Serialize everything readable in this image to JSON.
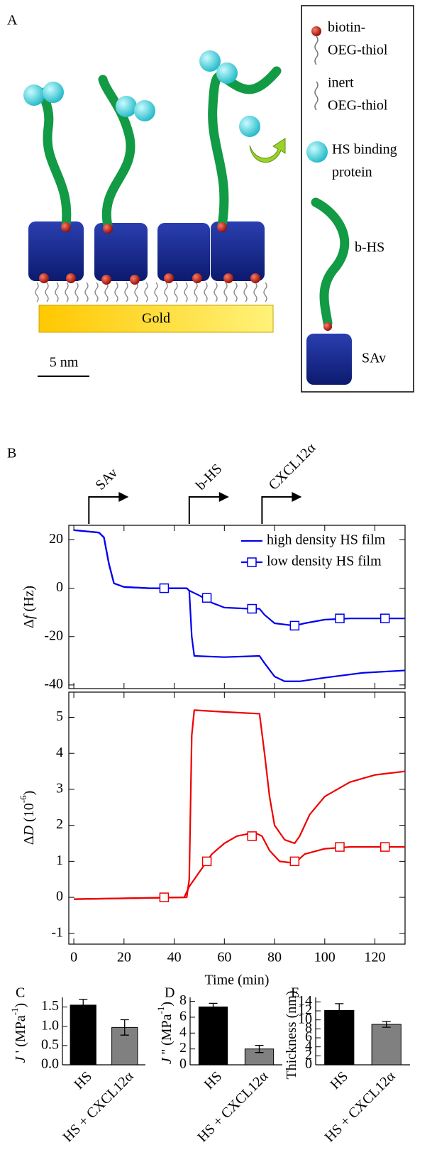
{
  "panel_labels": {
    "a": "A",
    "b": "B",
    "c": "C",
    "d": "D",
    "e": "E"
  },
  "diagram": {
    "substrate": "Gold",
    "scale_bar": "5 nm",
    "legend": [
      {
        "lines": [
          "biotin-",
          "OEG-thiol"
        ]
      },
      {
        "lines": [
          "inert",
          "OEG-thiol"
        ]
      },
      {
        "lines": [
          "HS binding",
          "protein"
        ]
      },
      {
        "lines": [
          "b-HS"
        ]
      },
      {
        "lines": [
          "SAv"
        ]
      }
    ]
  },
  "chart_data": [
    {
      "type": "line",
      "ylabel": [
        "Δ",
        "f",
        " (Hz)"
      ],
      "xlim": [
        -2,
        132
      ],
      "ylim": [
        -41.5,
        26
      ],
      "yticks": [
        -40,
        -20,
        0,
        20
      ],
      "legend": "upper right",
      "annotations": [
        {
          "text": "SAv",
          "x": 6
        },
        {
          "text": "b-HS",
          "x": 46
        },
        {
          "text": "CXCL12α",
          "x": 75
        }
      ],
      "series": [
        {
          "name": "high density HS film",
          "color": "#0000ee",
          "x": [
            0,
            10,
            12,
            14,
            16,
            20,
            30,
            45,
            46,
            47,
            48,
            60,
            74,
            76,
            80,
            84,
            90,
            100,
            115,
            132
          ],
          "values": [
            24,
            23,
            21,
            10,
            2,
            0.5,
            0,
            0,
            -1,
            -20,
            -28,
            -28.5,
            -28,
            -31,
            -36.5,
            -38.5,
            -38.5,
            -37,
            -35,
            -34
          ]
        },
        {
          "name": "low density HS film",
          "color": "#0000ee",
          "x": [
            0,
            10,
            12,
            14,
            16,
            20,
            30,
            45,
            46,
            50,
            55,
            60,
            70,
            74,
            76,
            80,
            88,
            92,
            100,
            110,
            132
          ],
          "values": [
            24,
            23,
            21,
            10,
            2,
            0.5,
            0,
            0,
            -1,
            -3,
            -6,
            -8,
            -8.5,
            -8.5,
            -11,
            -14.5,
            -15.5,
            -14.5,
            -13,
            -12.5,
            -12.5
          ],
          "marker_x": [
            36,
            53,
            71,
            88,
            106,
            124
          ],
          "marker_values": [
            0,
            -4,
            -8.5,
            -15.5,
            -12.5,
            -12.5
          ]
        }
      ]
    },
    {
      "type": "line",
      "ylabel": [
        "Δ",
        "D",
        " (10",
        "-6",
        ")"
      ],
      "xlabel": "Time (min)",
      "xlim": [
        -2,
        132
      ],
      "ylim": [
        -1.3,
        5.7
      ],
      "xticks": [
        0,
        20,
        40,
        60,
        80,
        100,
        120
      ],
      "yticks": [
        -1,
        0,
        1,
        2,
        3,
        4,
        5
      ],
      "series": [
        {
          "color": "#ee0000",
          "x": [
            0,
            45,
            46,
            47,
            48,
            60,
            74,
            76,
            78,
            80,
            84,
            88,
            90,
            94,
            100,
            110,
            120,
            132
          ],
          "values": [
            -0.05,
            0,
            0.5,
            4.5,
            5.2,
            5.15,
            5.1,
            4,
            2.8,
            2,
            1.6,
            1.5,
            1.7,
            2.3,
            2.8,
            3.2,
            3.4,
            3.5
          ]
        },
        {
          "color": "#ee0000",
          "x": [
            0,
            44,
            46,
            50,
            55,
            60,
            65,
            72,
            75,
            78,
            82,
            88,
            92,
            100,
            110,
            132
          ],
          "values": [
            -0.05,
            0,
            0.3,
            0.7,
            1.2,
            1.5,
            1.7,
            1.8,
            1.7,
            1.3,
            1,
            0.95,
            1.2,
            1.35,
            1.4,
            1.4
          ],
          "marker_x": [
            36,
            53,
            71,
            88,
            106,
            124
          ],
          "marker_values": [
            0,
            1,
            1.7,
            1,
            1.4,
            1.4
          ]
        }
      ]
    },
    {
      "type": "bar",
      "ylabel": [
        "J",
        " ' (MPa",
        "-1",
        ")"
      ],
      "categories": [
        "HS",
        "HS + CXCL12α"
      ],
      "values": [
        1.55,
        0.97
      ],
      "errors": [
        0.15,
        0.2
      ],
      "colors": [
        "#000000",
        "#808080"
      ],
      "ylim": [
        0,
        1.75
      ],
      "yticks": [
        {
          "value": 0,
          "label": "0.0"
        },
        {
          "value": 0.5,
          "label": "0.5"
        },
        {
          "value": 1,
          "label": "1.0"
        },
        {
          "value": 1.5,
          "label": "1.5"
        }
      ]
    },
    {
      "type": "bar",
      "ylabel": [
        "J",
        " '' (MPa",
        "-1",
        ")"
      ],
      "categories": [
        "HS",
        "HS + CXCL12α"
      ],
      "values": [
        7.3,
        2.0
      ],
      "errors": [
        0.45,
        0.45
      ],
      "colors": [
        "#000000",
        "#808080"
      ],
      "ylim": [
        0,
        8.5
      ],
      "yticks": [
        0,
        2,
        4,
        6,
        8
      ]
    },
    {
      "type": "bar",
      "ylabel": [
        "Thickness (nm)"
      ],
      "categories": [
        "HS",
        "HS + CXCL12α"
      ],
      "values": [
        12.1,
        9.0
      ],
      "errors": [
        1.5,
        0.65
      ],
      "colors": [
        "#000000",
        "#808080"
      ],
      "ylim": [
        0,
        15
      ],
      "yticks": [
        0,
        2,
        4,
        6,
        8,
        10,
        12,
        14
      ]
    }
  ]
}
